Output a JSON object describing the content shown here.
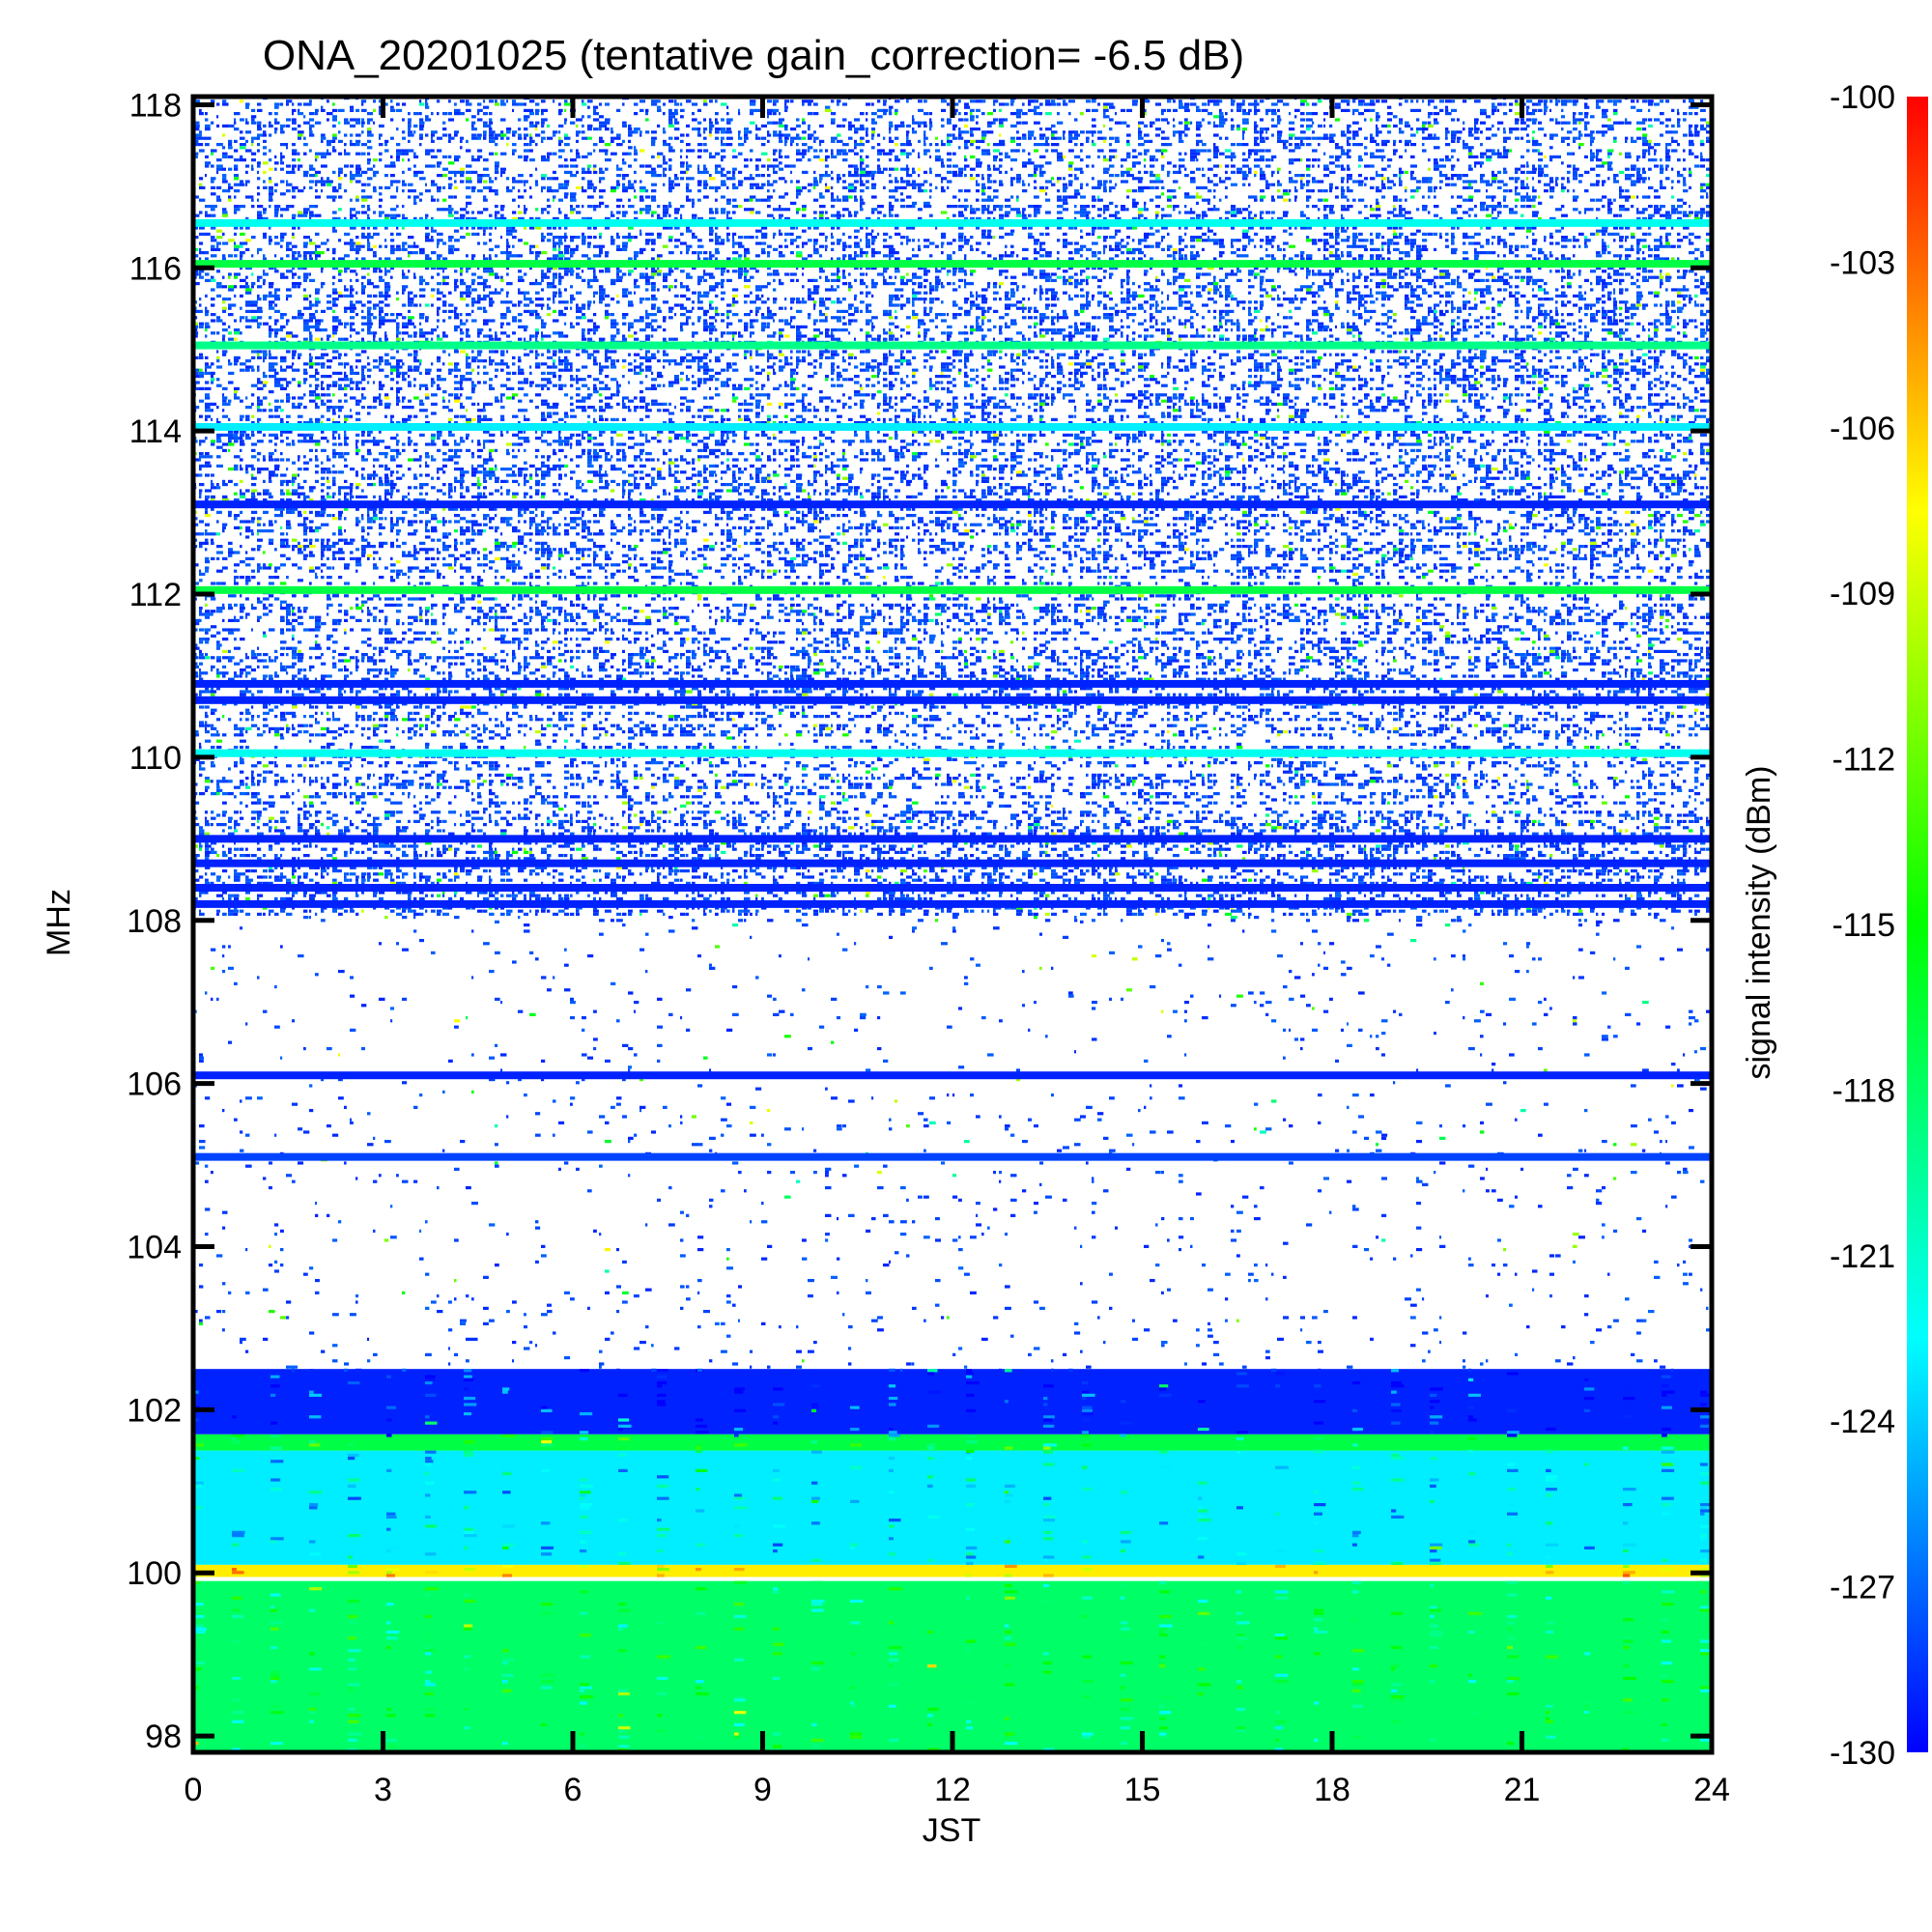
{
  "chart_data": {
    "type": "heatmap",
    "title": "ONA_20201025 (tentative gain_correction= -6.5 dB)",
    "xlabel": "JST",
    "ylabel": "MHz",
    "xlim": [
      0,
      24
    ],
    "ylim": [
      97.8,
      118.1
    ],
    "x_ticks": [
      0,
      3,
      6,
      9,
      12,
      15,
      18,
      21,
      24
    ],
    "y_ticks": [
      98,
      100,
      102,
      104,
      106,
      108,
      110,
      112,
      114,
      116,
      118
    ],
    "colorbar": {
      "label": "signal intensity (dBm)",
      "range": [
        -130,
        -100
      ],
      "ticks": [
        -100,
        -103,
        -106,
        -109,
        -112,
        -115,
        -118,
        -121,
        -124,
        -127,
        -130
      ],
      "colors": [
        "#0000ff",
        "#0080ff",
        "#00ffff",
        "#00ff80",
        "#00ff00",
        "#80ff00",
        "#ffff00",
        "#ff8000",
        "#ff0000"
      ]
    },
    "bands": [
      {
        "f0": 97.8,
        "f1": 99.9,
        "level_dbm": -118,
        "texture": "dense"
      },
      {
        "f0": 99.95,
        "f1": 100.1,
        "level_dbm": -107,
        "texture": "dense"
      },
      {
        "f0": 100.1,
        "f1": 101.5,
        "level_dbm": -123,
        "texture": "dense"
      },
      {
        "f0": 101.5,
        "f1": 101.7,
        "level_dbm": -117,
        "texture": "dense"
      },
      {
        "f0": 101.7,
        "f1": 102.5,
        "level_dbm": -129,
        "texture": "dense"
      },
      {
        "f0": 102.5,
        "f1": 108.0,
        "level_dbm": -129,
        "texture": "sparse"
      },
      {
        "f0": 108.0,
        "f1": 118.1,
        "level_dbm": -129,
        "texture": "medium"
      }
    ],
    "continuous_lines": [
      {
        "freq": 105.1,
        "level_dbm": -128
      },
      {
        "freq": 106.1,
        "level_dbm": -129
      },
      {
        "freq": 108.2,
        "level_dbm": -129
      },
      {
        "freq": 108.4,
        "level_dbm": -129
      },
      {
        "freq": 108.7,
        "level_dbm": -129
      },
      {
        "freq": 109.0,
        "level_dbm": -129
      },
      {
        "freq": 110.05,
        "level_dbm": -122
      },
      {
        "freq": 110.7,
        "level_dbm": -129
      },
      {
        "freq": 110.9,
        "level_dbm": -129
      },
      {
        "freq": 112.05,
        "level_dbm": -117
      },
      {
        "freq": 113.1,
        "level_dbm": -129
      },
      {
        "freq": 114.05,
        "level_dbm": -123
      },
      {
        "freq": 115.05,
        "level_dbm": -119
      },
      {
        "freq": 116.05,
        "level_dbm": -117
      },
      {
        "freq": 116.55,
        "level_dbm": -122
      }
    ]
  }
}
